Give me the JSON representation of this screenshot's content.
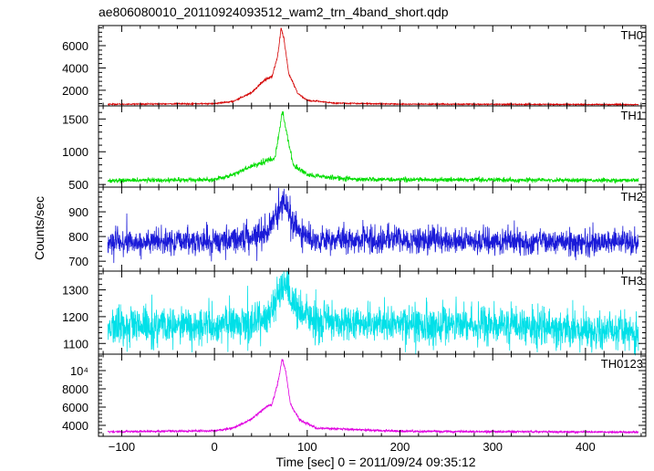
{
  "chart_data": {
    "type": "line",
    "title": "ae806080010_20110924093512_wam2_trn_4band_short.qdp",
    "xlabel": "Time [sec] 0 = 2011/09/24 09:35:12",
    "ylabel": "Counts/sec",
    "xlim": [
      -125,
      465
    ],
    "x_ticks": [
      -100,
      0,
      100,
      200,
      300,
      400
    ],
    "x_tick_labels": [
      "−100",
      "0",
      "100",
      "200",
      "300",
      "400"
    ],
    "grid": false,
    "series_time_range": [
      -115,
      457
    ],
    "panels": [
      {
        "name": "TH0",
        "color": "#d40000",
        "ylim": [
          600,
          7800
        ],
        "yticks": [
          2000,
          4000,
          6000
        ],
        "ytick_labels": [
          "2000",
          "4000",
          "6000"
        ],
        "profile": [
          [
            -115,
            750
          ],
          [
            0,
            800
          ],
          [
            20,
            1000
          ],
          [
            40,
            1800
          ],
          [
            55,
            3000
          ],
          [
            62,
            3200
          ],
          [
            68,
            5000
          ],
          [
            72,
            7600
          ],
          [
            75,
            6500
          ],
          [
            80,
            3500
          ],
          [
            90,
            1700
          ],
          [
            100,
            1100
          ],
          [
            130,
            850
          ],
          [
            200,
            760
          ],
          [
            457,
            720
          ]
        ]
      },
      {
        "name": "TH1",
        "color": "#00dd00",
        "ylim": [
          460,
          1700
        ],
        "yticks": [
          500,
          1000,
          1500
        ],
        "ytick_labels": [
          "500",
          "1000",
          "1500"
        ],
        "profile": [
          [
            -115,
            560
          ],
          [
            0,
            575
          ],
          [
            20,
            650
          ],
          [
            40,
            780
          ],
          [
            55,
            860
          ],
          [
            65,
            900
          ],
          [
            70,
            1300
          ],
          [
            73,
            1620
          ],
          [
            77,
            1350
          ],
          [
            85,
            800
          ],
          [
            100,
            640
          ],
          [
            150,
            580
          ],
          [
            457,
            560
          ]
        ]
      },
      {
        "name": "TH2",
        "color": "#1a1ad8",
        "ylim": [
          660,
          1000
        ],
        "yticks": [
          700,
          800,
          900
        ],
        "ytick_labels": [
          "700",
          "800",
          "900"
        ],
        "profile": [
          [
            -115,
            775
          ],
          [
            0,
            780
          ],
          [
            40,
            800
          ],
          [
            60,
            830
          ],
          [
            70,
            920
          ],
          [
            75,
            950
          ],
          [
            85,
            850
          ],
          [
            100,
            790
          ],
          [
            200,
            785
          ],
          [
            457,
            770
          ]
        ]
      },
      {
        "name": "TH3",
        "color": "#00e0e8",
        "ylim": [
          1060,
          1370
        ],
        "yticks": [
          1100,
          1200,
          1300
        ],
        "ytick_labels": [
          "1100",
          "1200",
          "1300"
        ],
        "profile": [
          [
            -115,
            1160
          ],
          [
            0,
            1165
          ],
          [
            40,
            1180
          ],
          [
            60,
            1210
          ],
          [
            72,
            1290
          ],
          [
            78,
            1300
          ],
          [
            90,
            1220
          ],
          [
            110,
            1180
          ],
          [
            300,
            1165
          ],
          [
            457,
            1140
          ]
        ]
      },
      {
        "name": "TH0123",
        "color": "#e000e0",
        "ylim": [
          2800,
          11800
        ],
        "yticks": [
          4000,
          6000,
          8000
        ],
        "ytick_labels": [
          "4000",
          "6000",
          "8000"
        ],
        "yticks_extra_label": "10⁴",
        "profile": [
          [
            -115,
            3300
          ],
          [
            0,
            3400
          ],
          [
            20,
            3700
          ],
          [
            40,
            4700
          ],
          [
            55,
            6000
          ],
          [
            62,
            6300
          ],
          [
            68,
            8500
          ],
          [
            73,
            11300
          ],
          [
            77,
            9800
          ],
          [
            82,
            6300
          ],
          [
            92,
            4600
          ],
          [
            110,
            3700
          ],
          [
            200,
            3350
          ],
          [
            457,
            3250
          ]
        ]
      }
    ]
  }
}
